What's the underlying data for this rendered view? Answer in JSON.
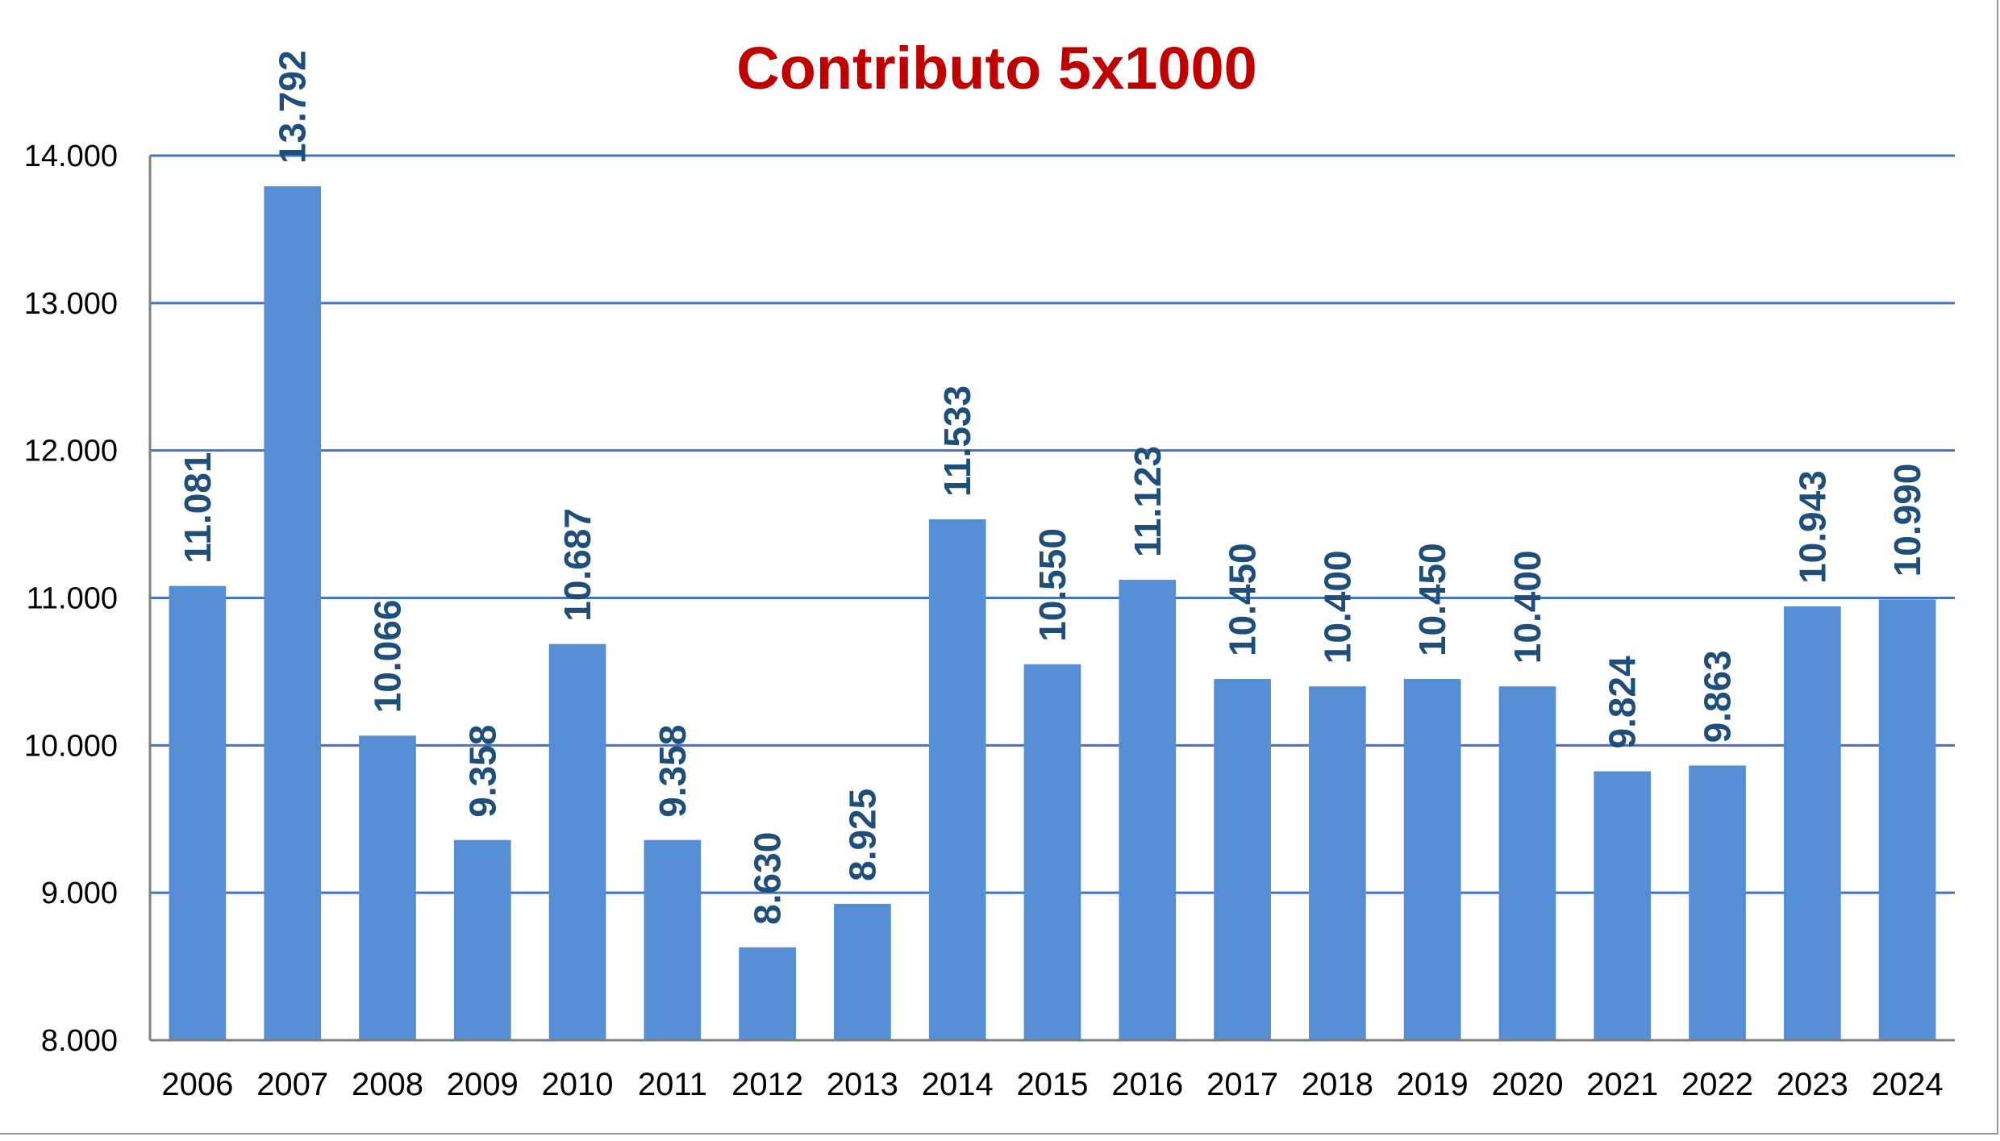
{
  "chart_data": {
    "type": "bar",
    "title": "Contributo 5x1000",
    "xlabel": "",
    "ylabel": "",
    "categories": [
      "2006",
      "2007",
      "2008",
      "2009",
      "2010",
      "2011",
      "2012",
      "2013",
      "2014",
      "2015",
      "2016",
      "2017",
      "2018",
      "2019",
      "2020",
      "2021",
      "2022",
      "2023",
      "2024"
    ],
    "values": [
      11081,
      13792,
      10066,
      9358,
      10687,
      9358,
      8630,
      8925,
      11533,
      10550,
      11123,
      10450,
      10400,
      10450,
      10400,
      9824,
      9863,
      10943,
      10990
    ],
    "value_labels": [
      "11.081",
      "13.792",
      "10.066",
      "9.358",
      "10.687",
      "9.358",
      "8.630",
      "8.925",
      "11.533",
      "10.550",
      "11.123",
      "10.450",
      "10.400",
      "10.450",
      "10.400",
      "9.824",
      "9.863",
      "10.943",
      "10.990"
    ],
    "ylim": [
      8000,
      14000
    ],
    "yticks": [
      8000,
      9000,
      10000,
      11000,
      12000,
      13000,
      14000
    ],
    "ytick_labels": [
      "8.000",
      "9.000",
      "10.000",
      "11.000",
      "12.000",
      "13.000",
      "14.000"
    ],
    "grid": true,
    "legend": "none",
    "colors": {
      "bar": "#558ed5",
      "grid": "#4472c4",
      "title": "#c00000",
      "data_label": "#1f4e79"
    }
  }
}
